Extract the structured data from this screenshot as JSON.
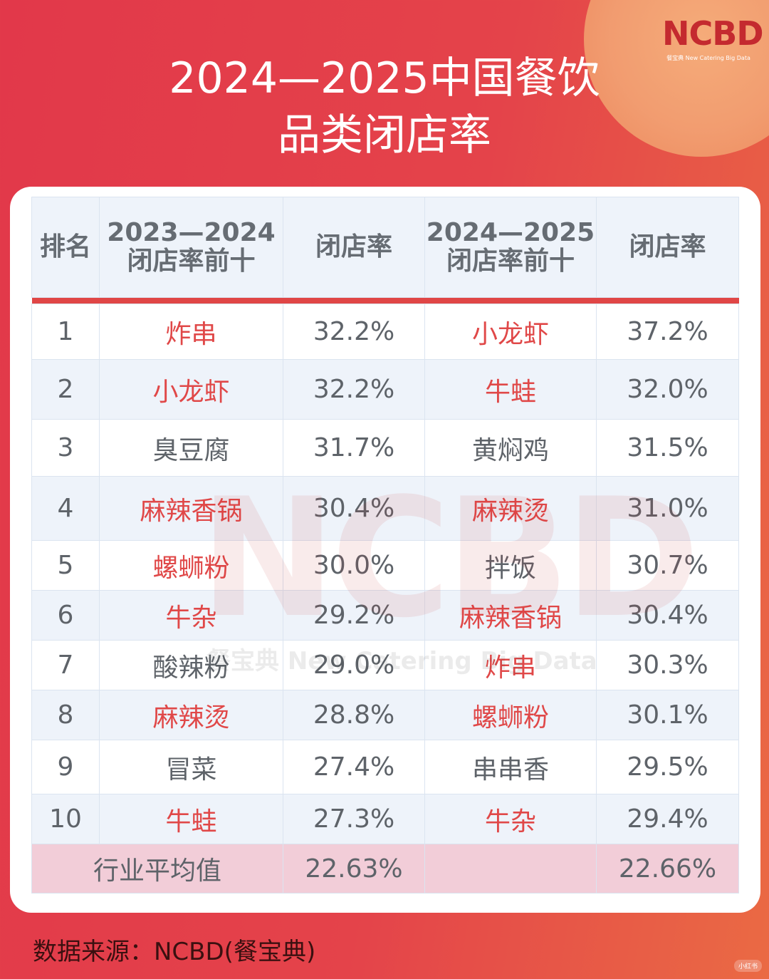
{
  "title": {
    "line1": "2024—2025中国餐饮",
    "line2": "品类闭店率"
  },
  "logo": {
    "main": "NCBD",
    "sub": "餐宝典 New Catering Big Data"
  },
  "table": {
    "headers": [
      "排名",
      "2023—2024\n闭店率前十",
      "闭店率",
      "2024—2025\n闭店率前十",
      "闭店率"
    ],
    "header_lines": {
      "h1a": "2023—2024",
      "h1b": "闭店率前十",
      "h3a": "2024—2025",
      "h3b": "闭店率前十"
    },
    "rows": [
      {
        "rank": "1",
        "cat_a": "炸串",
        "rate_a": "32.2%",
        "cat_b": "小龙虾",
        "rate_b": "37.2%"
      },
      {
        "rank": "2",
        "cat_a": "小龙虾",
        "rate_a": "32.2%",
        "cat_b": "牛蛙",
        "rate_b": "32.0%"
      },
      {
        "rank": "3",
        "cat_a": "臭豆腐",
        "rate_a": "31.7%",
        "cat_b": "黄焖鸡",
        "rate_b": "31.5%"
      },
      {
        "rank": "4",
        "cat_a": "麻辣香锅",
        "rate_a": "30.4%",
        "cat_b": "麻辣烫",
        "rate_b": "31.0%"
      },
      {
        "rank": "5",
        "cat_a": "螺蛳粉",
        "rate_a": "30.0%",
        "cat_b": "拌饭",
        "rate_b": "30.7%"
      },
      {
        "rank": "6",
        "cat_a": "牛杂",
        "rate_a": "29.2%",
        "cat_b": "麻辣香锅",
        "rate_b": "30.4%"
      },
      {
        "rank": "7",
        "cat_a": "酸辣粉",
        "rate_a": "29.0%",
        "cat_b": "炸串",
        "rate_b": "30.3%"
      },
      {
        "rank": "8",
        "cat_a": "麻辣烫",
        "rate_a": "28.8%",
        "cat_b": "螺蛳粉",
        "rate_b": "30.1%"
      },
      {
        "rank": "9",
        "cat_a": "冒菜",
        "rate_a": "27.4%",
        "cat_b": "串串香",
        "rate_b": "29.5%"
      },
      {
        "rank": "10",
        "cat_a": "牛蛙",
        "rate_a": "27.3%",
        "cat_b": "牛杂",
        "rate_b": "29.4%"
      }
    ],
    "average": {
      "label": "行业平均值",
      "rate_a": "22.63%",
      "rate_b": "22.66%"
    }
  },
  "watermark": {
    "big": "NCBD",
    "small": "餐宝典 New Catering Big Data"
  },
  "source": "数据来源：NCBD(餐宝典)",
  "badge": "小红书",
  "colors": {
    "accent_red": "#e04646",
    "highlight_text": "#e04848",
    "normal_text": "#5e6369",
    "header_bg": "#eef3fa",
    "avg_row_bg": "#f2cdd8",
    "logo_red": "#c42a2f"
  },
  "chart_data": {
    "type": "table",
    "title": "2024—2025中国餐饮品类闭店率",
    "columns": [
      "排名",
      "2023—2024闭店率前十",
      "闭店率",
      "2024—2025闭店率前十",
      "闭店率"
    ],
    "rows": [
      [
        1,
        "炸串",
        32.2,
        "小龙虾",
        37.2
      ],
      [
        2,
        "小龙虾",
        32.2,
        "牛蛙",
        32.0
      ],
      [
        3,
        "臭豆腐",
        31.7,
        "黄焖鸡",
        31.5
      ],
      [
        4,
        "麻辣香锅",
        30.4,
        "麻辣烫",
        31.0
      ],
      [
        5,
        "螺蛳粉",
        30.0,
        "拌饭",
        30.7
      ],
      [
        6,
        "牛杂",
        29.2,
        "麻辣香锅",
        30.4
      ],
      [
        7,
        "酸辣粉",
        29.0,
        "炸串",
        30.3
      ],
      [
        8,
        "麻辣烫",
        28.8,
        "螺蛳粉",
        30.1
      ],
      [
        9,
        "冒菜",
        27.4,
        "串串香",
        29.5
      ],
      [
        10,
        "牛蛙",
        27.3,
        "牛杂",
        29.4
      ]
    ],
    "series": [
      {
        "name": "2023—2024",
        "categories": [
          "炸串",
          "小龙虾",
          "臭豆腐",
          "麻辣香锅",
          "螺蛳粉",
          "牛杂",
          "酸辣粉",
          "麻辣烫",
          "冒菜",
          "牛蛙"
        ],
        "values": [
          32.2,
          32.2,
          31.7,
          30.4,
          30.0,
          29.2,
          29.0,
          28.8,
          27.4,
          27.3
        ],
        "industry_average": 22.63
      },
      {
        "name": "2024—2025",
        "categories": [
          "小龙虾",
          "牛蛙",
          "黄焖鸡",
          "麻辣烫",
          "拌饭",
          "麻辣香锅",
          "炸串",
          "螺蛳粉",
          "串串香",
          "牛杂"
        ],
        "values": [
          37.2,
          32.0,
          31.5,
          31.0,
          30.7,
          30.4,
          30.3,
          30.1,
          29.5,
          29.4
        ],
        "industry_average": 22.66
      }
    ],
    "highlighted_categories": [
      "炸串",
      "小龙虾",
      "麻辣香锅",
      "螺蛳粉",
      "牛杂",
      "麻辣烫",
      "牛蛙"
    ],
    "unit": "%",
    "source": "数据来源：NCBD(餐宝典)"
  }
}
